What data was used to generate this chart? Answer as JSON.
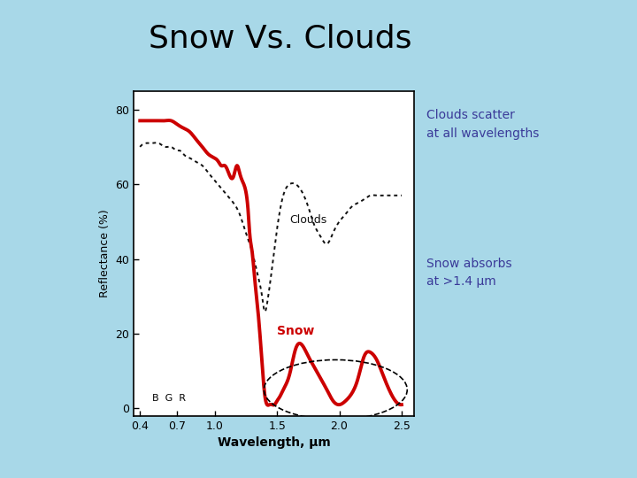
{
  "title": "Snow Vs. Clouds",
  "title_fontsize": 26,
  "bg_color": "#a8d8e8",
  "plot_bg_color": "#ffffff",
  "xlabel": "Wavelength, μm",
  "ylabel": "Reflectance (%)",
  "xlim": [
    0.35,
    2.6
  ],
  "ylim": [
    -2,
    85
  ],
  "yticks": [
    0,
    20,
    40,
    60,
    80
  ],
  "xticks": [
    0.4,
    0.7,
    1.0,
    1.5,
    2.0,
    2.5
  ],
  "xtick_labels": [
    "0.4",
    "0.7",
    "1.0",
    "1.5",
    "2.0",
    "2.5"
  ],
  "annotation_clouds": "Clouds scatter\nat all wavelengths",
  "annotation_snow": "Snow absorbs\nat >1.4 μm",
  "annotation_color": "#3a3a99",
  "snow_label": "Snow",
  "clouds_label": "Clouds",
  "snow_label_color": "#cc0000",
  "clouds_label_color": "#111111",
  "bgr_label": "B  G  R",
  "snow_color": "#cc0000",
  "clouds_color": "#111111",
  "snow_x": [
    0.4,
    0.45,
    0.5,
    0.55,
    0.6,
    0.65,
    0.7,
    0.75,
    0.8,
    0.85,
    0.9,
    0.95,
    1.0,
    1.03,
    1.05,
    1.08,
    1.1,
    1.15,
    1.18,
    1.2,
    1.22,
    1.25,
    1.27,
    1.28,
    1.3,
    1.32,
    1.35,
    1.38,
    1.4,
    1.42,
    1.44,
    1.46,
    1.48,
    1.5,
    1.52,
    1.55,
    1.6,
    1.65,
    1.7,
    1.75,
    1.8,
    1.85,
    1.9,
    1.95,
    2.0,
    2.05,
    2.1,
    2.15,
    2.2,
    2.25,
    2.3,
    2.35,
    2.4,
    2.45,
    2.5
  ],
  "snow_y": [
    77,
    77,
    77,
    77,
    77,
    77,
    76,
    75,
    74,
    72,
    70,
    68,
    67,
    66,
    65,
    65,
    64,
    62,
    65,
    63,
    61,
    58,
    52,
    47,
    42,
    35,
    25,
    12,
    4,
    1,
    1,
    1,
    1,
    2,
    3,
    5,
    9,
    16,
    17,
    14,
    11,
    8,
    5,
    2,
    1,
    2,
    4,
    8,
    14,
    15,
    13,
    9,
    5,
    2,
    1
  ],
  "clouds_x": [
    0.4,
    0.45,
    0.5,
    0.55,
    0.6,
    0.65,
    0.7,
    0.72,
    0.75,
    0.8,
    0.85,
    0.9,
    0.95,
    1.0,
    1.05,
    1.1,
    1.15,
    1.2,
    1.25,
    1.3,
    1.35,
    1.38,
    1.4,
    1.42,
    1.45,
    1.5,
    1.55,
    1.6,
    1.65,
    1.7,
    1.75,
    1.8,
    1.85,
    1.9,
    1.95,
    2.0,
    2.05,
    2.1,
    2.15,
    2.2,
    2.25,
    2.3,
    2.35,
    2.4,
    2.45,
    2.5
  ],
  "clouds_y": [
    70,
    71,
    71,
    71,
    70,
    70,
    69,
    69,
    68,
    67,
    66,
    65,
    63,
    61,
    59,
    57,
    55,
    52,
    47,
    42,
    35,
    30,
    26,
    28,
    35,
    48,
    57,
    60,
    60,
    58,
    54,
    49,
    46,
    44,
    47,
    50,
    52,
    54,
    55,
    56,
    57,
    57,
    57,
    57,
    57,
    57
  ]
}
